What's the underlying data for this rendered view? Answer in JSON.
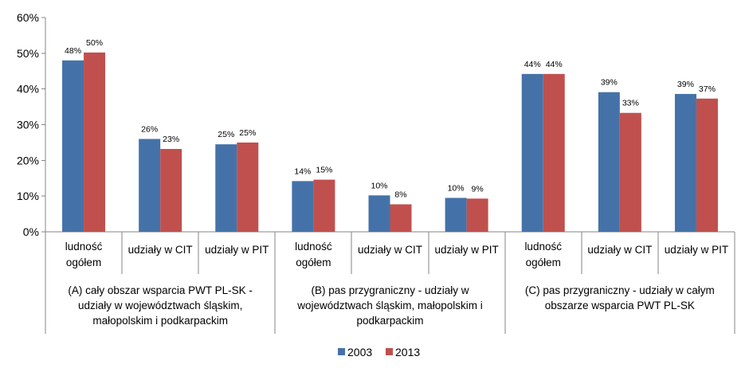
{
  "chart_data": {
    "type": "bar",
    "title": "",
    "ylim": [
      0,
      60
    ],
    "yticks": [
      "0%",
      "10%",
      "20%",
      "30%",
      "40%",
      "50%",
      "60%"
    ],
    "ytick_values": [
      0,
      10,
      20,
      30,
      40,
      50,
      60
    ],
    "grid": false,
    "groups": [
      {
        "label_lines": [
          "(A) cały obszar wsparcia PWT PL-SK -",
          "udziały w województwach śląskim,",
          "małopolskim i podkarpackim"
        ],
        "categories": [
          {
            "lines": [
              "ludność",
              "ogółem"
            ]
          },
          {
            "lines": [
              "udziały w CIT"
            ]
          },
          {
            "lines": [
              "udziały w PIT"
            ]
          }
        ]
      },
      {
        "label_lines": [
          "(B) pas przygraniczny - udziały w",
          "województwach śląskim, małopolskim i",
          "podkarpackim"
        ],
        "categories": [
          {
            "lines": [
              "ludność",
              "ogółem"
            ]
          },
          {
            "lines": [
              "udziały w CIT"
            ]
          },
          {
            "lines": [
              "udziały w PIT"
            ]
          }
        ]
      },
      {
        "label_lines": [
          "(C) pas przygraniczny - udziały w całym",
          "obszarze wsparcia PWT PL-SK"
        ],
        "categories": [
          {
            "lines": [
              "ludność",
              "ogółem"
            ]
          },
          {
            "lines": [
              "udziały w CIT"
            ]
          },
          {
            "lines": [
              "udziały w PIT"
            ]
          }
        ]
      }
    ],
    "series": [
      {
        "name": "2003",
        "color": "#4472A8",
        "values": [
          48.0,
          26.0,
          24.5,
          14.2,
          10.2,
          9.5,
          44.2,
          39.1,
          38.6
        ],
        "labels": [
          "48%",
          "26%",
          "25%",
          "14%",
          "10%",
          "10%",
          "44%",
          "39%",
          "39%"
        ]
      },
      {
        "name": "2013",
        "color": "#C0504D",
        "values": [
          50.2,
          23.2,
          25.0,
          14.6,
          7.7,
          9.3,
          44.2,
          33.3,
          37.3
        ],
        "labels": [
          "50%",
          "23%",
          "25%",
          "15%",
          "8%",
          "9%",
          "44%",
          "33%",
          "37%"
        ]
      }
    ],
    "legend": {
      "position": "bottom"
    }
  }
}
